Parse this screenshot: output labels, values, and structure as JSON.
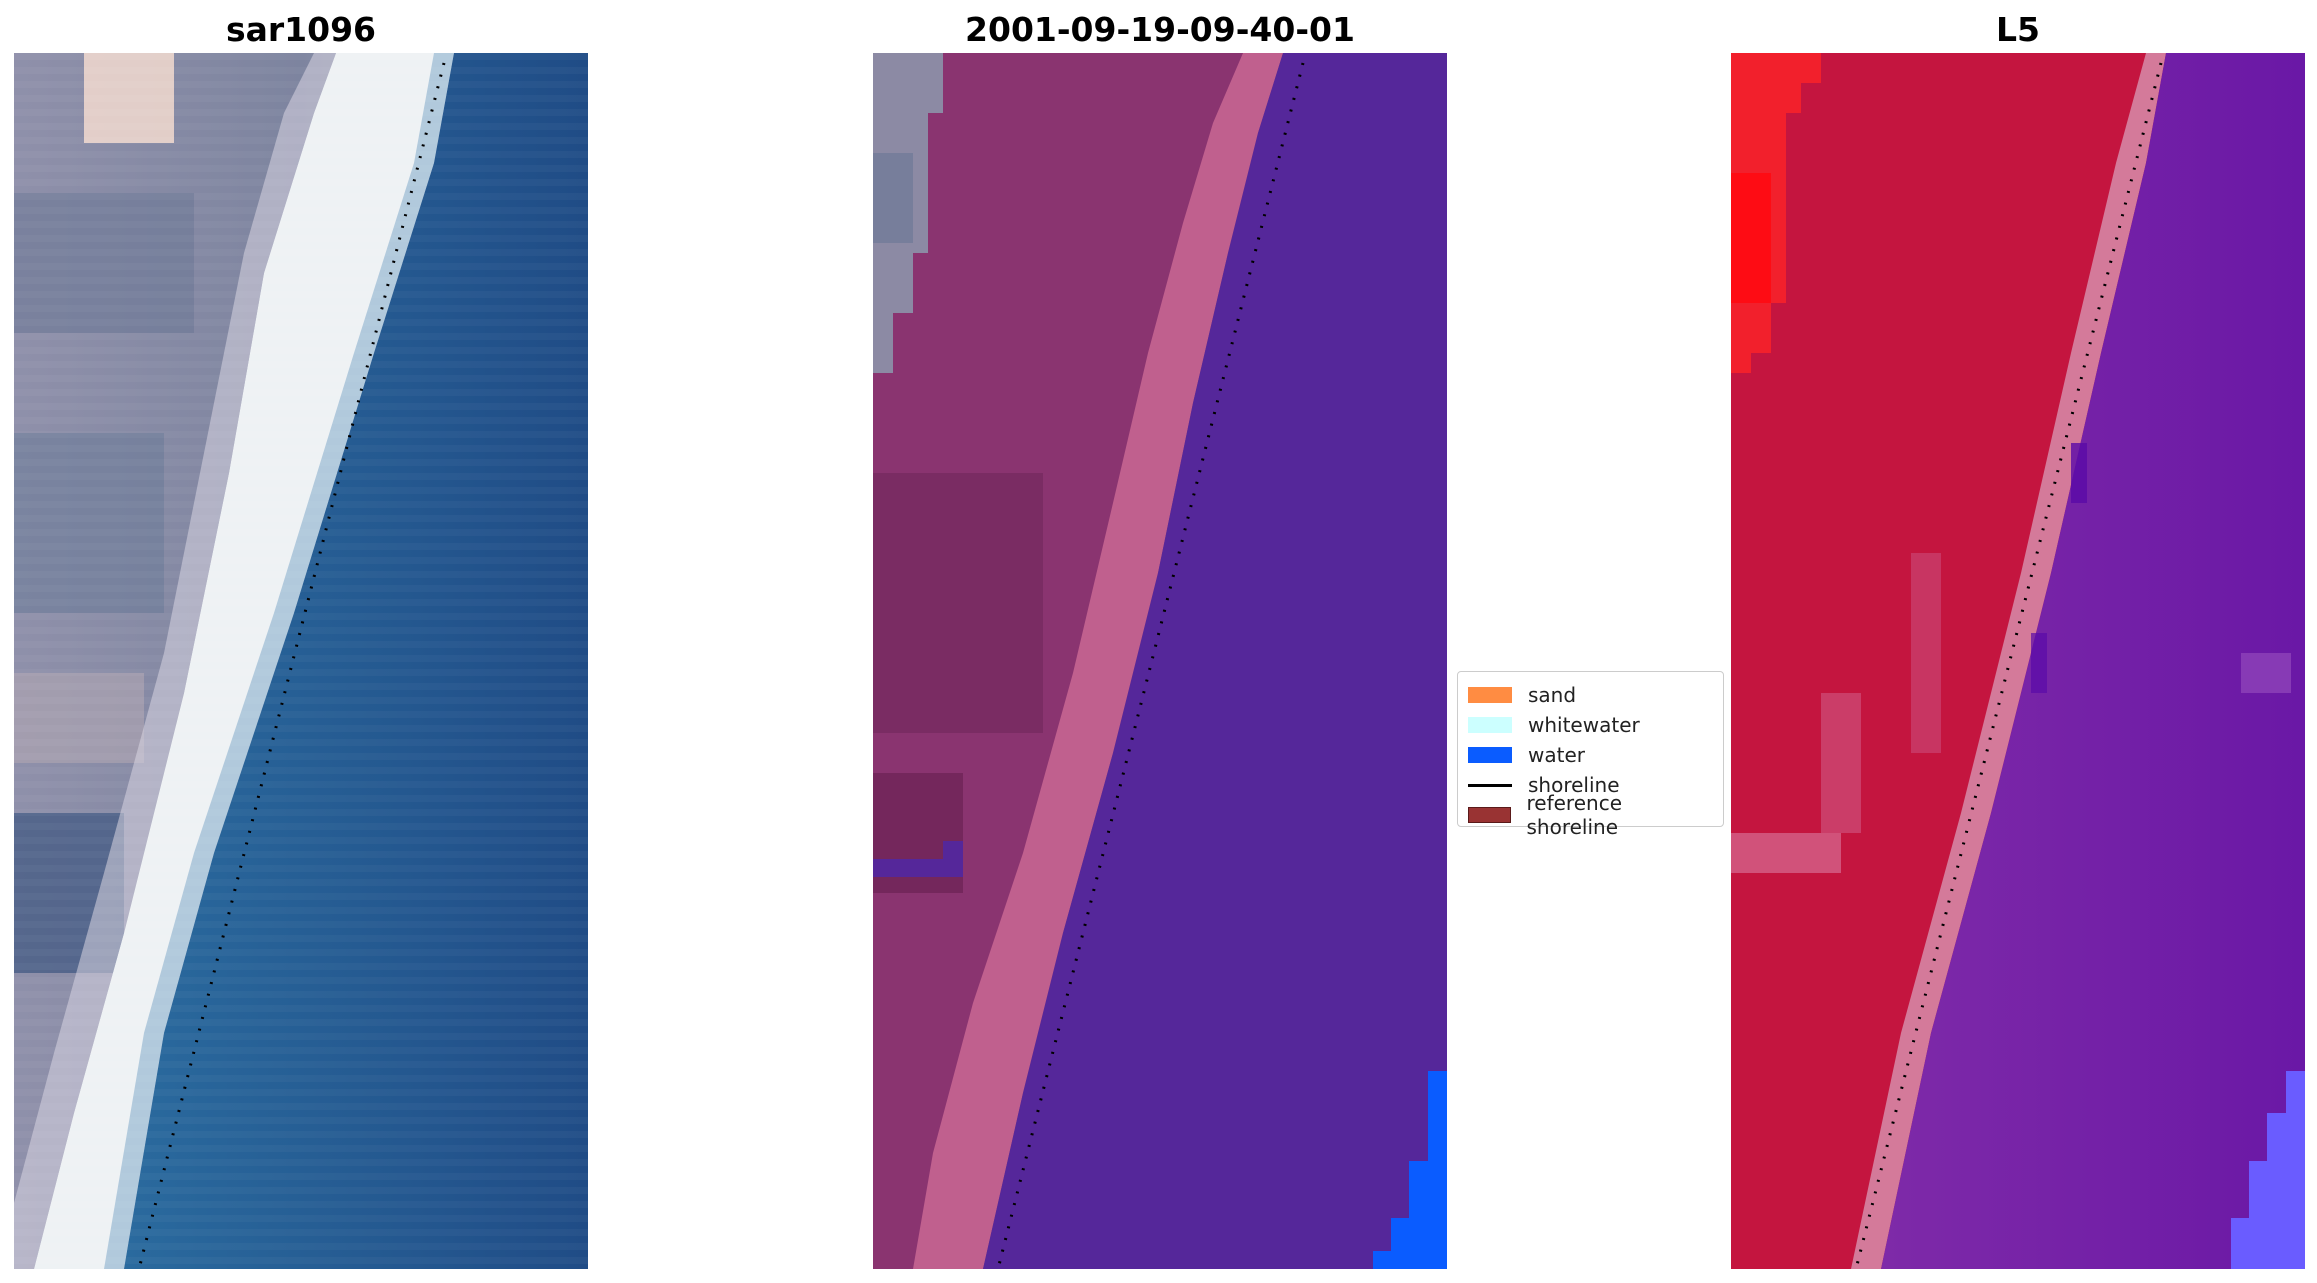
{
  "panels": [
    {
      "title": "sar1096",
      "kind": "rgb"
    },
    {
      "title": "2001-09-19-09-40-01",
      "kind": "classified"
    },
    {
      "title": "L5",
      "kind": "index"
    }
  ],
  "legend": {
    "items": [
      {
        "label": "sand",
        "type": "patch",
        "color": "#ff8c42"
      },
      {
        "label": "whitewater",
        "type": "patch",
        "color": "#ccffff"
      },
      {
        "label": "water",
        "type": "patch",
        "color": "#0a5cff"
      },
      {
        "label": "shoreline",
        "type": "line",
        "color": "#000000"
      },
      {
        "label": "reference shoreline",
        "type": "patch",
        "color": "#993333"
      }
    ]
  },
  "colors": {
    "rgb_land": "#8a8ea8",
    "rgb_surf": "#eef2f4",
    "rgb_water": "#245a8e",
    "class_land": "#8a3470",
    "class_surf": "#c0608e",
    "class_water": "#55279a",
    "class_water_patch": "#0a5cff",
    "index_land": "#c4153f",
    "index_surf": "#d47a9a",
    "index_water": "#7c22a6",
    "shoreline": "#000000"
  }
}
